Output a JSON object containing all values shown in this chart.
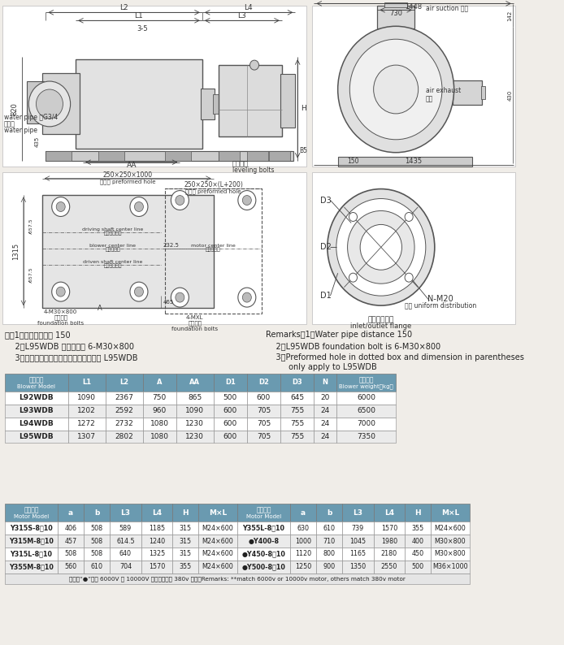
{
  "bg_color": "#f0ede8",
  "header_color": "#6a9ab0",
  "row_colors": [
    "#ffffff",
    "#ebebeb"
  ],
  "blower_headers": [
    "Blower Model",
    "L1",
    "L2",
    "A",
    "AA",
    "D1",
    "D2",
    "D3",
    "N",
    "Blower weight"
  ],
  "blower_headers_cn": [
    "风机型号\nBlower Model",
    "L1",
    "L2",
    "A",
    "AA",
    "D1",
    "D2",
    "D3",
    "N",
    "主机重量\nBlower weight（kg）"
  ],
  "blower_data": [
    [
      "L92WDB",
      "1090",
      "2367",
      "750",
      "865",
      "500",
      "600",
      "645",
      "20",
      "6000"
    ],
    [
      "L93WDB",
      "1202",
      "2592",
      "960",
      "1090",
      "600",
      "705",
      "755",
      "24",
      "6500"
    ],
    [
      "L94WDB",
      "1272",
      "2732",
      "1080",
      "1230",
      "600",
      "705",
      "755",
      "24",
      "7000"
    ],
    [
      "L95WDB",
      "1307",
      "2802",
      "1080",
      "1230",
      "600",
      "705",
      "755",
      "24",
      "7350"
    ]
  ],
  "motor_headers_cn": [
    "电机型号\nMotor Model",
    "a",
    "b",
    "L3",
    "L4",
    "H",
    "M×L",
    "电机型号\nMotor Model",
    "a",
    "b",
    "L3",
    "L4",
    "H",
    "M×L"
  ],
  "motor_data": [
    [
      "Y315S-8，10",
      "406",
      "508",
      "589",
      "1185",
      "315",
      "M24×600",
      "Y355L-8，10",
      "630",
      "610",
      "739",
      "1570",
      "355",
      "M24×600"
    ],
    [
      "Y315M-8，10",
      "457",
      "508",
      "614.5",
      "1240",
      "315",
      "M24×600",
      "●Y400-8",
      "1000",
      "710",
      "1045",
      "1980",
      "400",
      "M30×800"
    ],
    [
      "Y315L-8，10",
      "508",
      "508",
      "640",
      "1325",
      "315",
      "M24×600",
      "●Y450-8，10",
      "1120",
      "800",
      "1165",
      "2180",
      "450",
      "M30×800"
    ],
    [
      "Y355M-8，10",
      "560",
      "610",
      "704",
      "1570",
      "355",
      "M24×600",
      "●Y500-8，10",
      "1250",
      "900",
      "1350",
      "2550",
      "500",
      "M36×1000"
    ]
  ],
  "motor_footer": "注：带“●”适用 6000V 或 10000V 电机，其余为 380v 电机。Remarks: **match 6000v or 10000v motor, others match 380v motor",
  "note_cn1": "注：1、输水管间距为 150",
  "note_cn2": "    2、L95WDB 地脚螺栓为 6-M30×800",
  "note_cn3": "    3、虚线框内预留孔及括号内尺寸仅用于 L95WDB",
  "note_en1": "Remarks：1、Water pipe distance 150",
  "note_en2": "    2、L95WDB foundation bolt is 6-M30×800",
  "note_en3": "    3、Preformed hole in dotted box and dimension in parentheses",
  "note_en4": "         only apply to L95WDB"
}
